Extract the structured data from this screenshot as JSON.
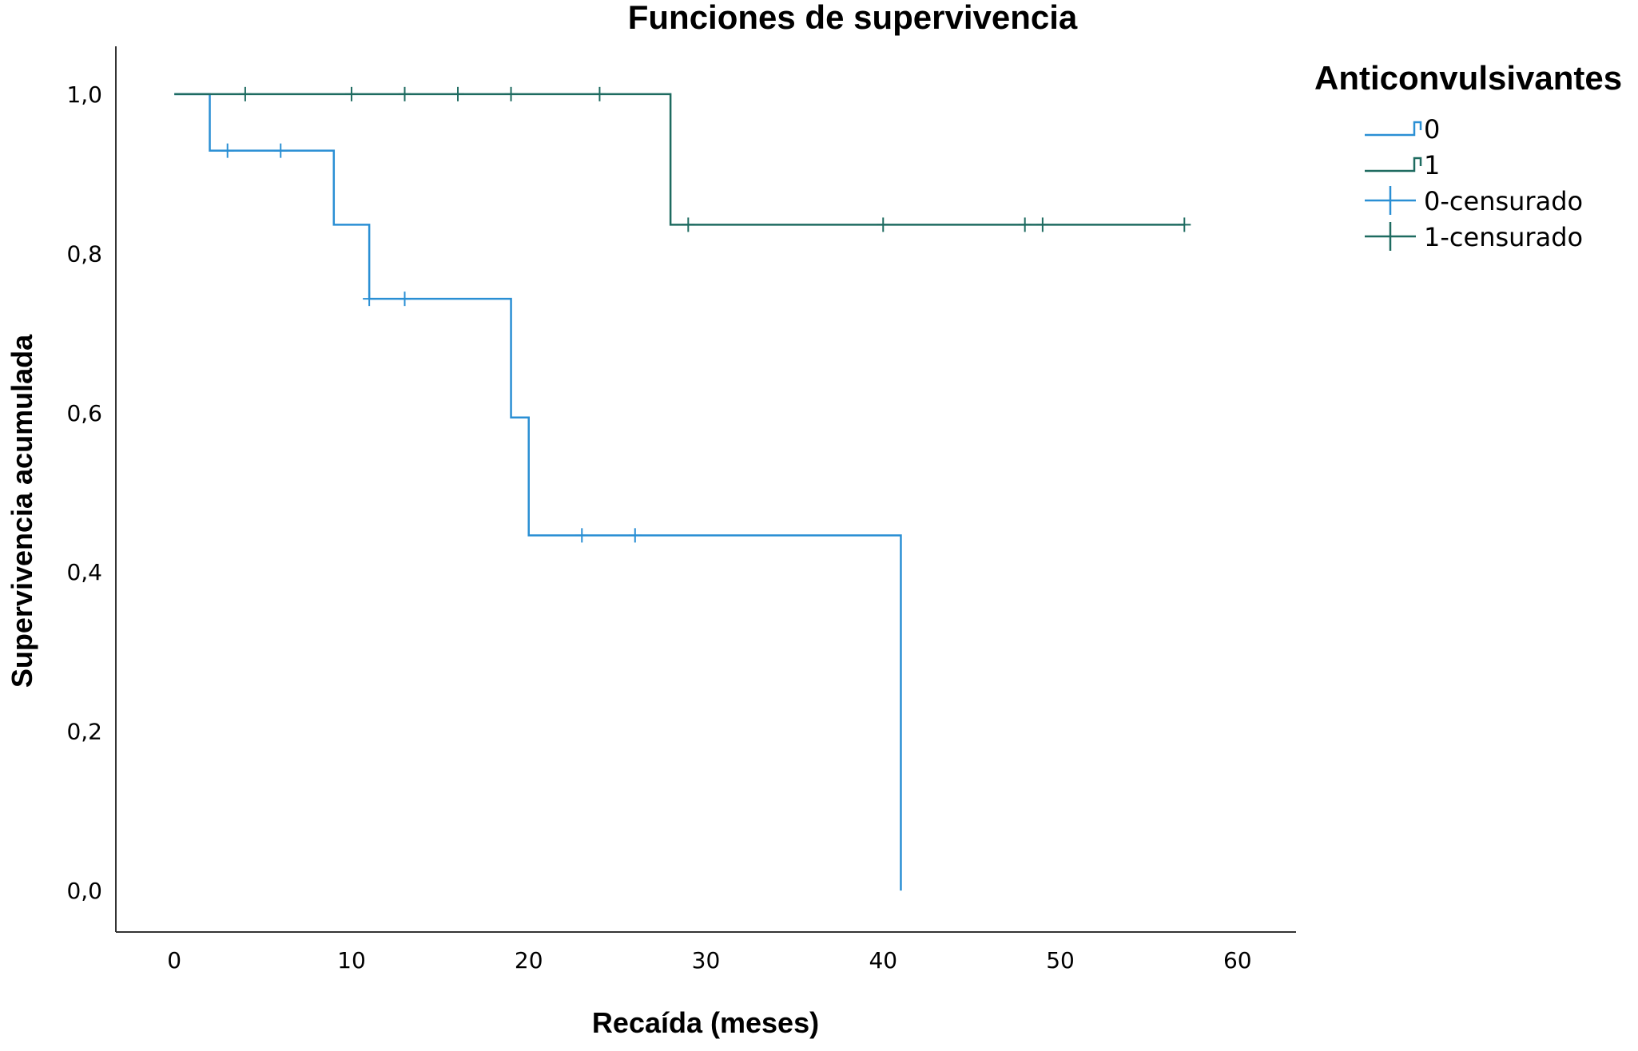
{
  "chart_data": {
    "type": "line",
    "subtype": "kaplan-meier step",
    "title": "Funciones de supervivencia",
    "xlabel": "Recaída (meses)",
    "ylabel": "Supervivencia acumulada",
    "xlim": [
      -3.3,
      63.3
    ],
    "ylim": [
      -0.052,
      1.06
    ],
    "x_ticks": [
      0,
      10,
      20,
      30,
      40,
      50,
      60
    ],
    "x_tick_labels": [
      "0",
      "10",
      "20",
      "30",
      "40",
      "50",
      "60"
    ],
    "y_ticks": [
      0.0,
      0.2,
      0.4,
      0.6,
      0.8,
      1.0
    ],
    "y_tick_labels": [
      "0,0",
      "0,2",
      "0,4",
      "0,6",
      "0,8",
      "1,0"
    ],
    "grid": false,
    "legend": {
      "title": "Anticonvulsivantes",
      "placement": "top-right",
      "entries": [
        "0",
        "1",
        "0-censurado",
        "1-censurado"
      ]
    },
    "series": [
      {
        "name": "0",
        "color": "#2a8fd4",
        "steps": [
          [
            0,
            1.0
          ],
          [
            2,
            0.929
          ],
          [
            9,
            0.836
          ],
          [
            11,
            0.743
          ],
          [
            19,
            0.594
          ],
          [
            20,
            0.446
          ],
          [
            41,
            0.0
          ]
        ],
        "censored": [
          [
            3,
            0.929
          ],
          [
            6,
            0.929
          ],
          [
            11,
            0.743
          ],
          [
            13,
            0.743
          ],
          [
            23,
            0.446
          ],
          [
            26,
            0.446
          ]
        ]
      },
      {
        "name": "1",
        "color": "#1e6b60",
        "steps": [
          [
            0,
            1.0
          ],
          [
            28,
            0.836
          ],
          [
            57,
            0.836
          ]
        ],
        "censored": [
          [
            4,
            1.0
          ],
          [
            10,
            1.0
          ],
          [
            13,
            1.0
          ],
          [
            16,
            1.0
          ],
          [
            19,
            1.0
          ],
          [
            24,
            1.0
          ],
          [
            29,
            0.836
          ],
          [
            40,
            0.836
          ],
          [
            48,
            0.836
          ],
          [
            49,
            0.836
          ],
          [
            57,
            0.836
          ]
        ]
      }
    ]
  }
}
